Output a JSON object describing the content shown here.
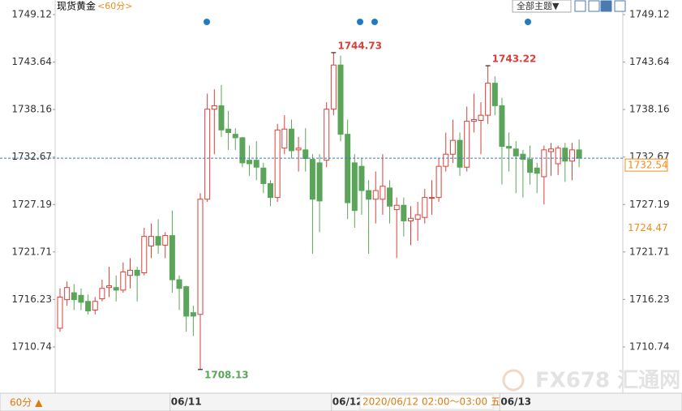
{
  "chart_data": {
    "type": "candlestick",
    "title": "现货黄金",
    "period": "<60分>",
    "theme_button": "全部主题▼",
    "period_button": "60分 ▲",
    "crosshair_label": "2020/06/12 02:00～03:00 五",
    "watermark": "FX678 汇通网",
    "categories": [
      null,
      null,
      null,
      null,
      null,
      null,
      null,
      null,
      null,
      null,
      null,
      null,
      null,
      null,
      null,
      null,
      null,
      null,
      "06/11",
      null,
      null,
      null,
      null,
      null,
      null,
      null,
      null,
      null,
      null,
      null,
      null,
      null,
      null,
      null,
      null,
      null,
      null,
      null,
      null,
      null,
      null,
      "06/12",
      null,
      null,
      null,
      null,
      null,
      null,
      null,
      null,
      null,
      null,
      null,
      null,
      null,
      null,
      null,
      null,
      null,
      null,
      null,
      null,
      null,
      null,
      null,
      "06/13",
      null,
      null,
      null,
      null,
      null,
      null,
      null,
      null,
      null
    ],
    "open": [
      1712.9,
      1716.2,
      1717,
      1716.7,
      1716,
      1715,
      1716.3,
      1717.6,
      1717.6,
      1717.3,
      1719,
      1719.6,
      1719.3,
      1722.4,
      1723.5,
      1722.5,
      1723.6,
      1718.5,
      1717.7,
      1714.7,
      1714.5,
      1727.8,
      1738.2,
      1738.6,
      1735.9,
      1735.3,
      1734.9,
      1732.3,
      1732.3,
      1731.4,
      1729.6,
      1728,
      1733.7,
      1735.9,
      1733.5,
      1733.5,
      1732.4,
      1732,
      1732.3,
      1738.2,
      1743.3,
      1735.3,
      1732,
      1731.6,
      1728.8,
      1727.8,
      1727.8,
      1729.1,
      1726.6,
      1727.1,
      1725.3,
      1725.5,
      1725.7,
      1728,
      1728,
      1731.6,
      1733,
      1734.6,
      1731.5,
      1736.8,
      1736.9,
      1737.5,
      1741.2,
      1738.6,
      1733.9,
      1733.6,
      1733,
      1732.4,
      1731.4,
      1730.4,
      1733.3,
      1731.9,
      1733.7,
      1732.2,
      1733.5
    ],
    "high": [
      1717.5,
      1718.3,
      1718,
      1717.5,
      1716.8,
      1716.5,
      1718.5,
      1720,
      1719,
      1720.5,
      1721,
      1720,
      1724.5,
      1725,
      1725.5,
      1724,
      1726.5,
      1719,
      1717.8,
      1715.5,
      1728.5,
      1740,
      1740.5,
      1741,
      1738,
      1736,
      1735,
      1734,
      1734.5,
      1732,
      1730,
      1736.5,
      1737.5,
      1737,
      1735,
      1736,
      1733,
      1733,
      1739,
      1744.73,
      1744.4,
      1737,
      1733,
      1732.5,
      1730,
      1731,
      1733,
      1730,
      1728,
      1728,
      1727,
      1727.5,
      1729,
      1730,
      1732.5,
      1735.5,
      1737,
      1735.5,
      1738.5,
      1740,
      1739,
      1743.22,
      1742,
      1739.5,
      1735.5,
      1734.5,
      1733.5,
      1734,
      1732,
      1734,
      1734.3,
      1734,
      1734.3,
      1734.3,
      1734.7
    ],
    "low": [
      1712.5,
      1715.5,
      1715,
      1715,
      1714.5,
      1714.5,
      1716,
      1716.5,
      1716,
      1717,
      1717.5,
      1716,
      1719,
      1721,
      1721.5,
      1721,
      1717,
      1715,
      1712.5,
      1712,
      1708.13,
      1727.5,
      1733,
      1735,
      1733.5,
      1733.5,
      1731.5,
      1730.5,
      1730,
      1728.5,
      1727,
      1727.5,
      1733,
      1732.5,
      1731,
      1731,
      1721.5,
      1724,
      1731.5,
      1737.5,
      1734.5,
      1725.5,
      1724.5,
      1726,
      1721.5,
      1725,
      1726,
      1725,
      1721,
      1723.5,
      1722.5,
      1723,
      1725,
      1726,
      1727.5,
      1731,
      1732,
      1730.5,
      1731,
      1735.5,
      1733,
      1736.5,
      1737.5,
      1729.5,
      1731,
      1728.5,
      1728,
      1729.5,
      1728.5,
      1727.2,
      1730.5,
      1730.6,
      1729.8,
      1730,
      1731.5
    ],
    "close": [
      1716.5,
      1717.6,
      1716.2,
      1715.9,
      1714.9,
      1716,
      1717.5,
      1717.8,
      1717.3,
      1719.4,
      1719.6,
      1719,
      1723.5,
      1723.5,
      1722.5,
      1723.6,
      1718.5,
      1717.5,
      1714.3,
      1714.3,
      1727.8,
      1738.2,
      1738.6,
      1735.8,
      1735.5,
      1734.9,
      1732,
      1731.9,
      1731.5,
      1729.6,
      1728,
      1735.8,
      1735.9,
      1733.4,
      1733.7,
      1732.5,
      1727.8,
      1727.6,
      1738.2,
      1743.3,
      1735.3,
      1727.4,
      1726.5,
      1728.8,
      1727.8,
      1728.8,
      1729.3,
      1727,
      1727.1,
      1725.3,
      1725.6,
      1726,
      1728,
      1728,
      1731.6,
      1733,
      1734.6,
      1731.5,
      1736.8,
      1737,
      1737.5,
      1741.2,
      1738.6,
      1733.9,
      1733.7,
      1732.8,
      1732.4,
      1730.9,
      1730.8,
      1733.5,
      1733.6,
      1733.7,
      1732.2,
      1733.5,
      1732.54
    ],
    "marked_highs": [
      39,
      61
    ],
    "marked_lows": [
      20
    ],
    "reference_price": 1724.47,
    "up_color": "#d9403a",
    "down_color": "#5aa55a",
    "price_line_color": "#3d7ab8",
    "label_color": "#f08c1e",
    "grid": false,
    "ylim": [
      1705.4,
      1750.06
    ],
    "yticks": [
      1749.12,
      1743.64,
      1738.16,
      1732.67,
      1727.19,
      1721.71,
      1716.23,
      1710.74
    ]
  }
}
